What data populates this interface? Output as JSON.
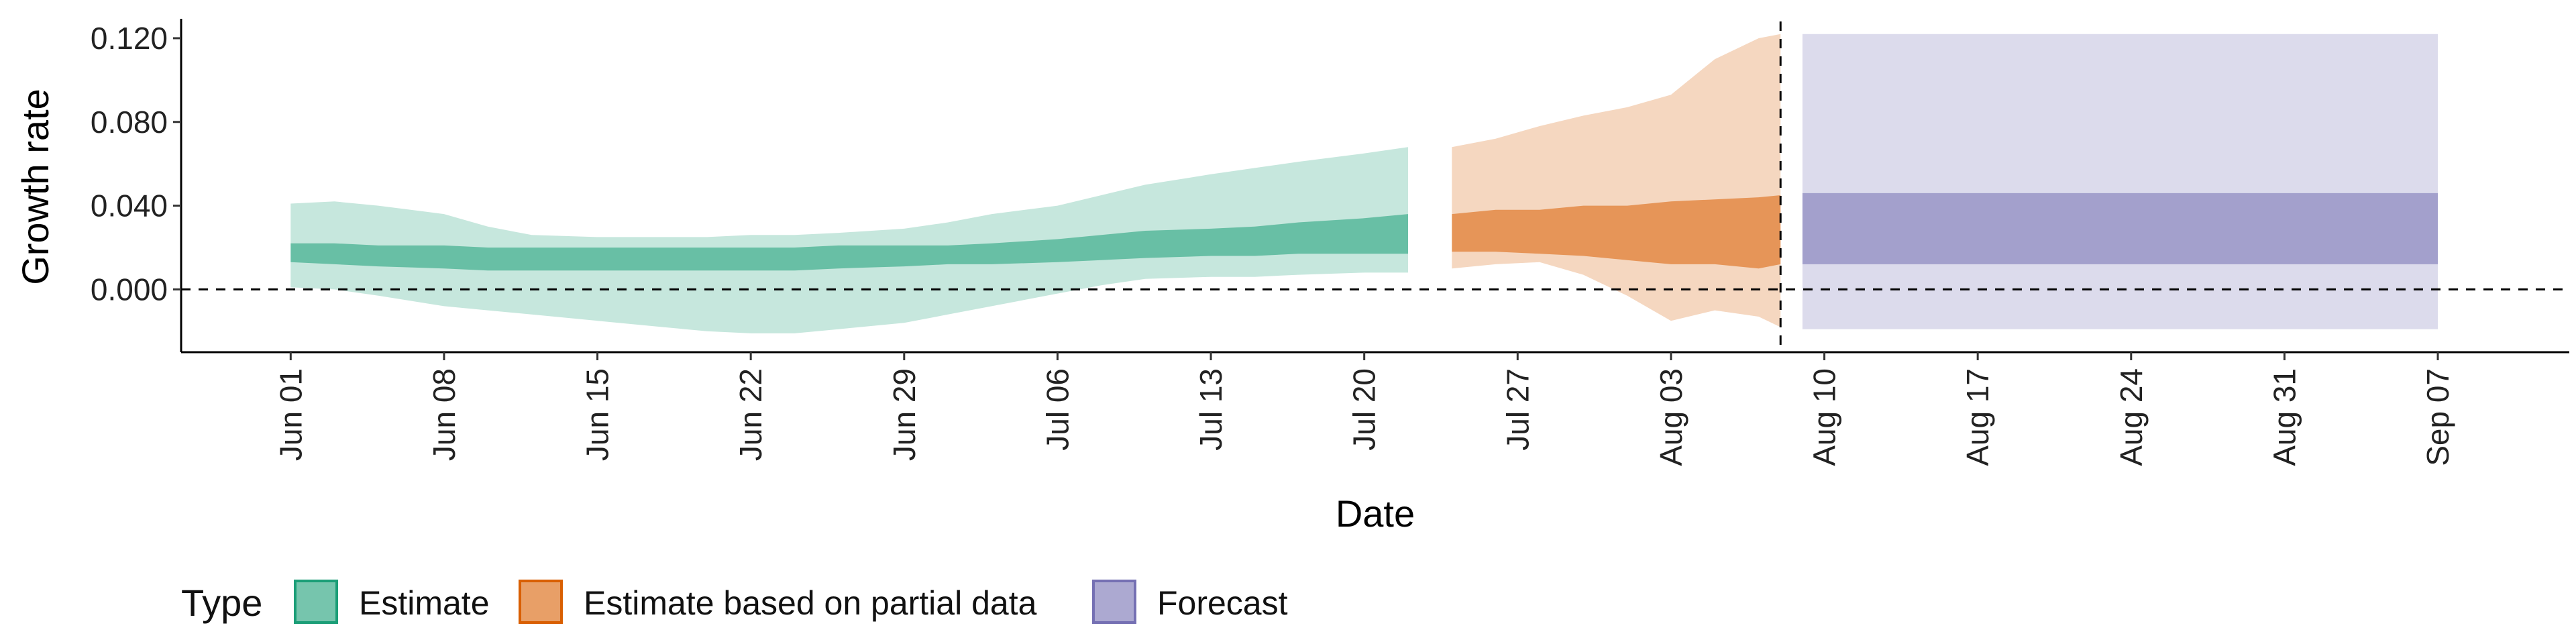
{
  "chart_data": {
    "type": "area",
    "xlabel": "Date",
    "ylabel": "Growth rate",
    "ylim": [
      -0.03,
      0.128
    ],
    "xlim": [
      "2020-05-27",
      "2020-09-13"
    ],
    "y_ticks": [
      0.0,
      0.04,
      0.08,
      0.12
    ],
    "y_tick_labels": [
      "0.000",
      "0.040",
      "0.080",
      "0.120"
    ],
    "x_ticks": [
      "2020-06-01",
      "2020-06-08",
      "2020-06-15",
      "2020-06-22",
      "2020-06-29",
      "2020-07-06",
      "2020-07-13",
      "2020-07-20",
      "2020-07-27",
      "2020-08-03",
      "2020-08-10",
      "2020-08-17",
      "2020-08-24",
      "2020-08-31",
      "2020-09-07"
    ],
    "x_tick_labels": [
      "Jun 01",
      "Jun 08",
      "Jun 15",
      "Jun 22",
      "Jun 29",
      "Jul 06",
      "Jul 13",
      "Jul 20",
      "Jul 27",
      "Aug 03",
      "Aug 10",
      "Aug 17",
      "Aug 24",
      "Aug 31",
      "Sep 07"
    ],
    "hline_y": 0.0,
    "vline_x": "2020-08-08",
    "grid": false,
    "legend": {
      "title": "Type",
      "placement": "bottom",
      "items": [
        {
          "label": "Estimate",
          "color": "#1b9e77"
        },
        {
          "label": "Estimate based on partial data",
          "color": "#d95f02"
        },
        {
          "label": "Forecast",
          "color": "#7570b3"
        }
      ]
    },
    "series": [
      {
        "name": "Estimate",
        "color": "#1b9e77",
        "x": [
          "2020-06-01",
          "2020-06-03",
          "2020-06-05",
          "2020-06-08",
          "2020-06-10",
          "2020-06-12",
          "2020-06-15",
          "2020-06-18",
          "2020-06-20",
          "2020-06-22",
          "2020-06-24",
          "2020-06-26",
          "2020-06-29",
          "2020-07-01",
          "2020-07-03",
          "2020-07-06",
          "2020-07-08",
          "2020-07-10",
          "2020-07-13",
          "2020-07-15",
          "2020-07-17",
          "2020-07-20",
          "2020-07-22"
        ],
        "lower90": [
          0.001,
          0.0,
          -0.003,
          -0.008,
          -0.01,
          -0.012,
          -0.015,
          -0.018,
          -0.02,
          -0.021,
          -0.021,
          -0.019,
          -0.016,
          -0.012,
          -0.008,
          -0.002,
          0.002,
          0.005,
          0.006,
          0.006,
          0.007,
          0.008,
          0.008
        ],
        "lower50": [
          0.013,
          0.012,
          0.011,
          0.01,
          0.009,
          0.009,
          0.009,
          0.009,
          0.009,
          0.009,
          0.009,
          0.01,
          0.011,
          0.012,
          0.012,
          0.013,
          0.014,
          0.015,
          0.016,
          0.016,
          0.017,
          0.017,
          0.017
        ],
        "upper50": [
          0.022,
          0.022,
          0.021,
          0.021,
          0.02,
          0.02,
          0.02,
          0.02,
          0.02,
          0.02,
          0.02,
          0.021,
          0.021,
          0.021,
          0.022,
          0.024,
          0.026,
          0.028,
          0.029,
          0.03,
          0.032,
          0.034,
          0.036
        ],
        "upper90": [
          0.041,
          0.042,
          0.04,
          0.036,
          0.03,
          0.026,
          0.025,
          0.025,
          0.025,
          0.026,
          0.026,
          0.027,
          0.029,
          0.032,
          0.036,
          0.04,
          0.045,
          0.05,
          0.055,
          0.058,
          0.061,
          0.065,
          0.068
        ]
      },
      {
        "name": "Estimate based on partial data",
        "color": "#d95f02",
        "x": [
          "2020-07-24",
          "2020-07-26",
          "2020-07-28",
          "2020-07-30",
          "2020-08-01",
          "2020-08-03",
          "2020-08-05",
          "2020-08-07",
          "2020-08-08"
        ],
        "lower90": [
          0.01,
          0.012,
          0.013,
          0.007,
          -0.003,
          -0.015,
          -0.01,
          -0.013,
          -0.018
        ],
        "lower50": [
          0.018,
          0.018,
          0.017,
          0.016,
          0.014,
          0.012,
          0.012,
          0.01,
          0.012
        ],
        "upper50": [
          0.036,
          0.038,
          0.038,
          0.04,
          0.04,
          0.042,
          0.043,
          0.044,
          0.045
        ],
        "upper90": [
          0.068,
          0.072,
          0.078,
          0.083,
          0.087,
          0.093,
          0.11,
          0.12,
          0.122
        ]
      },
      {
        "name": "Forecast",
        "color": "#7570b3",
        "x": [
          "2020-08-09",
          "2020-09-07"
        ],
        "lower90": [
          -0.019,
          -0.019
        ],
        "lower50": [
          0.012,
          0.012
        ],
        "upper50": [
          0.046,
          0.046
        ],
        "upper90": [
          0.122,
          0.122
        ]
      }
    ]
  }
}
